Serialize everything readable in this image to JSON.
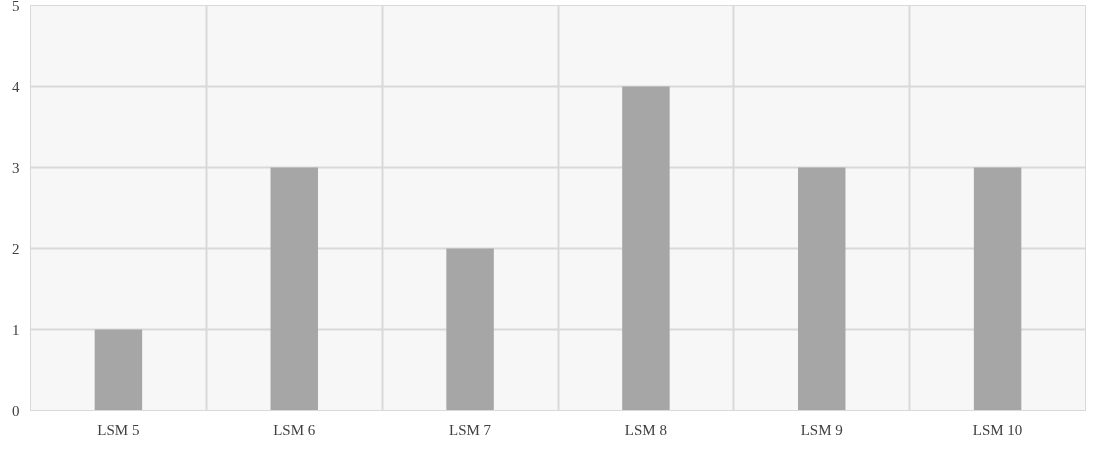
{
  "chart_data": {
    "type": "bar",
    "categories": [
      "LSM 5",
      "LSM 6",
      "LSM 7",
      "LSM 8",
      "LSM 9",
      "LSM 10"
    ],
    "values": [
      1,
      3,
      2,
      4,
      3,
      3
    ],
    "color": "#a6a6a6",
    "ylim": [
      0,
      5
    ],
    "yticks": [
      0,
      1,
      2,
      3,
      4,
      5
    ],
    "grid": true
  }
}
